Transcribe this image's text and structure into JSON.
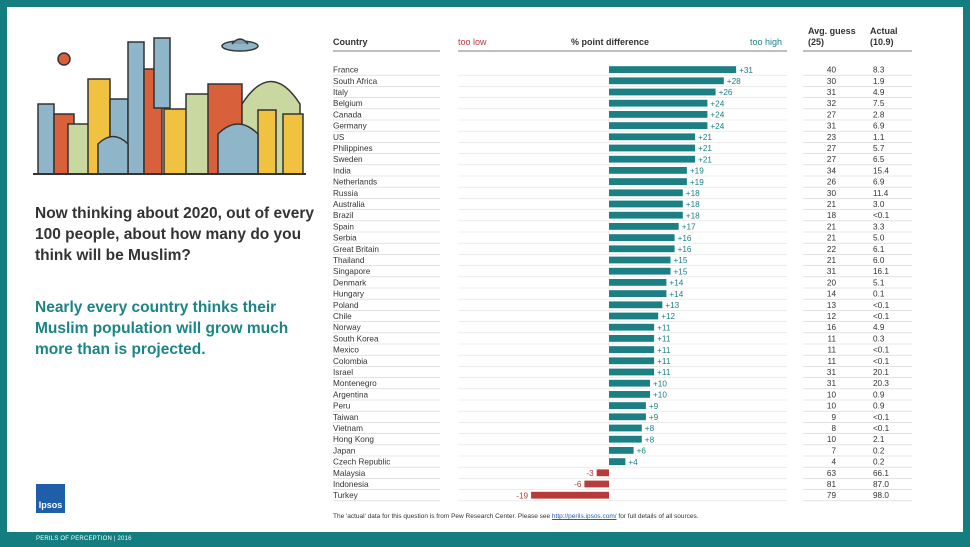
{
  "question": "Now thinking about 2020, out of every 100 people, about how many do you think will be Muslim?",
  "highlight": "Nearly every country thinks their Muslim population will grow much more than is projected.",
  "logo_text": "Ipsos",
  "footer": "PERILS OF PERCEPTION | 2016",
  "note": {
    "before": "The 'actual' data for this question is from Pew Research Center. Please see",
    "link": "http://perils.ipsos.com/",
    "after": "for full details of all sources."
  },
  "headers": {
    "country": "Country",
    "too_low": "too low",
    "diff": "% point difference",
    "too_high": "too high",
    "avg_guess": "Avg. guess",
    "avg_guess_sub": "(25)",
    "actual": "Actual",
    "actual_sub": "(10.9)"
  },
  "colors": {
    "positive": "#1b7f83",
    "negative": "#b83b3b",
    "frame": "#147d7f"
  },
  "chart_data": {
    "type": "bar",
    "orientation": "horizontal",
    "categories": [
      "France",
      "South Africa",
      "Italy",
      "Belgium",
      "Canada",
      "Germany",
      "US",
      "Philippines",
      "Sweden",
      "India",
      "Netherlands",
      "Russia",
      "Australia",
      "Brazil",
      "Spain",
      "Serbia",
      "Great Britain",
      "Thailand",
      "Singapore",
      "Denmark",
      "Hungary",
      "Poland",
      "Chile",
      "Norway",
      "South Korea",
      "Mexico",
      "Colombia",
      "Israel",
      "Montenegro",
      "Argentina",
      "Peru",
      "Taiwan",
      "Vietnam",
      "Hong Kong",
      "Japan",
      "Czech Republic",
      "Malaysia",
      "Indonesia",
      "Turkey"
    ],
    "values": [
      31,
      28,
      26,
      24,
      24,
      24,
      21,
      21,
      21,
      19,
      19,
      18,
      18,
      18,
      17,
      16,
      16,
      15,
      15,
      14,
      14,
      13,
      12,
      11,
      11,
      11,
      11,
      11,
      10,
      10,
      9,
      9,
      8,
      8,
      6,
      4,
      -3,
      -6,
      -19
    ],
    "value_labels": [
      "+31",
      "+28",
      "+26",
      "+24",
      "+24",
      "+24",
      "+21",
      "+21",
      "+21",
      "+19",
      "+19",
      "+18",
      "+18",
      "+18",
      "+17",
      "+16",
      "+16",
      "+15",
      "+15",
      "+14",
      "+14",
      "+13",
      "+12",
      "+11",
      "+11",
      "+11",
      "+11",
      "+11",
      "+10",
      "+10",
      "+9",
      "+9",
      "+8",
      "+8",
      "+6",
      "+4",
      "-3",
      "-6",
      "-19"
    ],
    "avg_guess": [
      "40",
      "30",
      "31",
      "32",
      "27",
      "31",
      "23",
      "27",
      "27",
      "34",
      "26",
      "30",
      "21",
      "18",
      "21",
      "21",
      "22",
      "21",
      "31",
      "20",
      "14",
      "13",
      "12",
      "16",
      "11",
      "11",
      "11",
      "31",
      "31",
      "10",
      "10",
      "9",
      "8",
      "10",
      "7",
      "4",
      "63",
      "81",
      "79"
    ],
    "actual": [
      "8.3",
      "1.9",
      "4.9",
      "7.5",
      "2.8",
      "6.9",
      "1.1",
      "5.7",
      "6.5",
      "15.4",
      "6.9",
      "11.4",
      "3.0",
      "<0.1",
      "3.3",
      "5.0",
      "6.1",
      "6.0",
      "16.1",
      "5.1",
      "0.1",
      "<0.1",
      "<0.1",
      "4.9",
      "0.3",
      "<0.1",
      "<0.1",
      "20.1",
      "20.3",
      "0.9",
      "0.9",
      "<0.1",
      "<0.1",
      "2.1",
      "0.2",
      "0.2",
      "66.1",
      "87.0",
      "98.0"
    ],
    "xlim": [
      -24,
      36
    ]
  }
}
